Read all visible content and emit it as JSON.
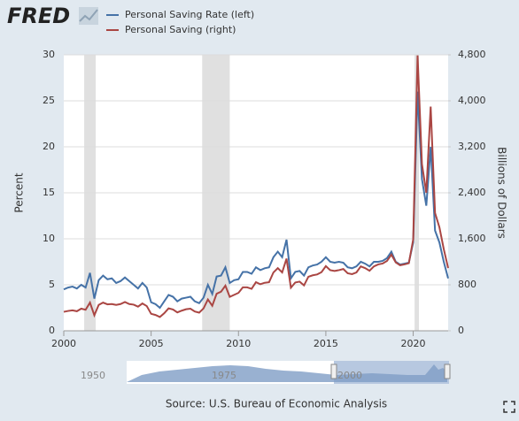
{
  "chart_data": {
    "type": "line",
    "logo": "FRED",
    "y_label": "Percent",
    "y2_label": "Billions of Dollars",
    "source": "Source: U.S. Bureau of Economic Analysis",
    "navigator_labels": [
      "1950",
      "1975",
      "2000"
    ],
    "xlim": [
      2000,
      2022
    ],
    "xticks": [
      2000,
      2005,
      2010,
      2015,
      2020
    ],
    "ylim": [
      0,
      30
    ],
    "yticks": [
      0,
      5,
      10,
      15,
      20,
      25,
      30
    ],
    "y2lim": [
      0,
      4800
    ],
    "y2ticks": [
      0,
      {
        "value": 800,
        "label": "800"
      },
      {
        "value": 1600,
        "label": "1,600"
      },
      {
        "value": 2400,
        "label": "2,400"
      },
      {
        "value": 3200,
        "label": "3,200"
      },
      {
        "value": 4000,
        "label": "4,000"
      },
      {
        "value": 4800,
        "label": "4,800"
      }
    ],
    "grid": true,
    "recessions": [
      [
        2001.17,
        2001.83
      ],
      [
        2007.92,
        2009.5
      ],
      [
        2020.08,
        2020.33
      ]
    ],
    "x": [
      2000,
      2000.25,
      2000.5,
      2000.75,
      2001,
      2001.25,
      2001.5,
      2001.75,
      2002,
      2002.25,
      2002.5,
      2002.75,
      2003,
      2003.25,
      2003.5,
      2003.75,
      2004,
      2004.25,
      2004.5,
      2004.75,
      2005,
      2005.25,
      2005.5,
      2005.75,
      2006,
      2006.25,
      2006.5,
      2006.75,
      2007,
      2007.25,
      2007.5,
      2007.75,
      2008,
      2008.25,
      2008.5,
      2008.75,
      2009,
      2009.25,
      2009.5,
      2009.75,
      2010,
      2010.25,
      2010.5,
      2010.75,
      2011,
      2011.25,
      2011.5,
      2011.75,
      2012,
      2012.25,
      2012.5,
      2012.75,
      2013,
      2013.25,
      2013.5,
      2013.75,
      2014,
      2014.25,
      2014.5,
      2014.75,
      2015,
      2015.25,
      2015.5,
      2015.75,
      2016,
      2016.25,
      2016.5,
      2016.75,
      2017,
      2017.25,
      2017.5,
      2017.75,
      2018,
      2018.25,
      2018.5,
      2018.75,
      2019,
      2019.25,
      2019.5,
      2019.75,
      2020,
      2020.25,
      2020.5,
      2020.75,
      2021,
      2021.25,
      2021.5,
      2021.75,
      2022
    ],
    "series": [
      {
        "name": "Personal Saving Rate (left)",
        "color": "#4572a7",
        "axis": "y",
        "values": [
          4.5,
          4.7,
          4.8,
          4.6,
          5.0,
          4.7,
          6.3,
          3.5,
          5.5,
          6.0,
          5.6,
          5.7,
          5.2,
          5.4,
          5.8,
          5.4,
          5.0,
          4.6,
          5.2,
          4.7,
          3.1,
          2.9,
          2.5,
          3.2,
          3.9,
          3.7,
          3.2,
          3.5,
          3.6,
          3.7,
          3.2,
          3.0,
          3.6,
          5.0,
          4.0,
          5.9,
          6.0,
          6.9,
          5.2,
          5.5,
          5.6,
          6.4,
          6.4,
          6.2,
          6.9,
          6.6,
          6.8,
          6.9,
          8.0,
          8.6,
          8.0,
          9.9,
          5.7,
          6.4,
          6.5,
          6.0,
          6.9,
          7.1,
          7.2,
          7.5,
          8.0,
          7.5,
          7.4,
          7.5,
          7.4,
          6.9,
          6.8,
          7.0,
          7.5,
          7.3,
          7.0,
          7.5,
          7.5,
          7.6,
          7.9,
          8.6,
          7.5,
          7.2,
          7.3,
          7.4,
          9.6,
          26.0,
          16.5,
          13.6,
          20.0,
          10.9,
          9.6,
          7.5,
          5.7
        ]
      },
      {
        "name": "Personal Saving (right)",
        "color": "#aa4643",
        "axis": "y2",
        "values": [
          330,
          345,
          355,
          340,
          385,
          365,
          490,
          270,
          450,
          490,
          460,
          465,
          450,
          465,
          500,
          465,
          455,
          420,
          475,
          430,
          295,
          275,
          240,
          305,
          390,
          370,
          320,
          350,
          375,
          385,
          335,
          315,
          390,
          545,
          435,
          645,
          680,
          785,
          590,
          625,
          660,
          755,
          755,
          730,
          845,
          810,
          835,
          845,
          1015,
          1090,
          1015,
          1255,
          750,
          840,
          855,
          790,
          940,
          965,
          980,
          1020,
          1125,
          1055,
          1040,
          1055,
          1075,
          1000,
          985,
          1015,
          1120,
          1090,
          1045,
          1120,
          1155,
          1170,
          1215,
          1325,
          1190,
          1140,
          1155,
          1175,
          1590,
          4790,
          2900,
          2400,
          3900,
          2050,
          1800,
          1420,
          1090
        ]
      }
    ]
  }
}
